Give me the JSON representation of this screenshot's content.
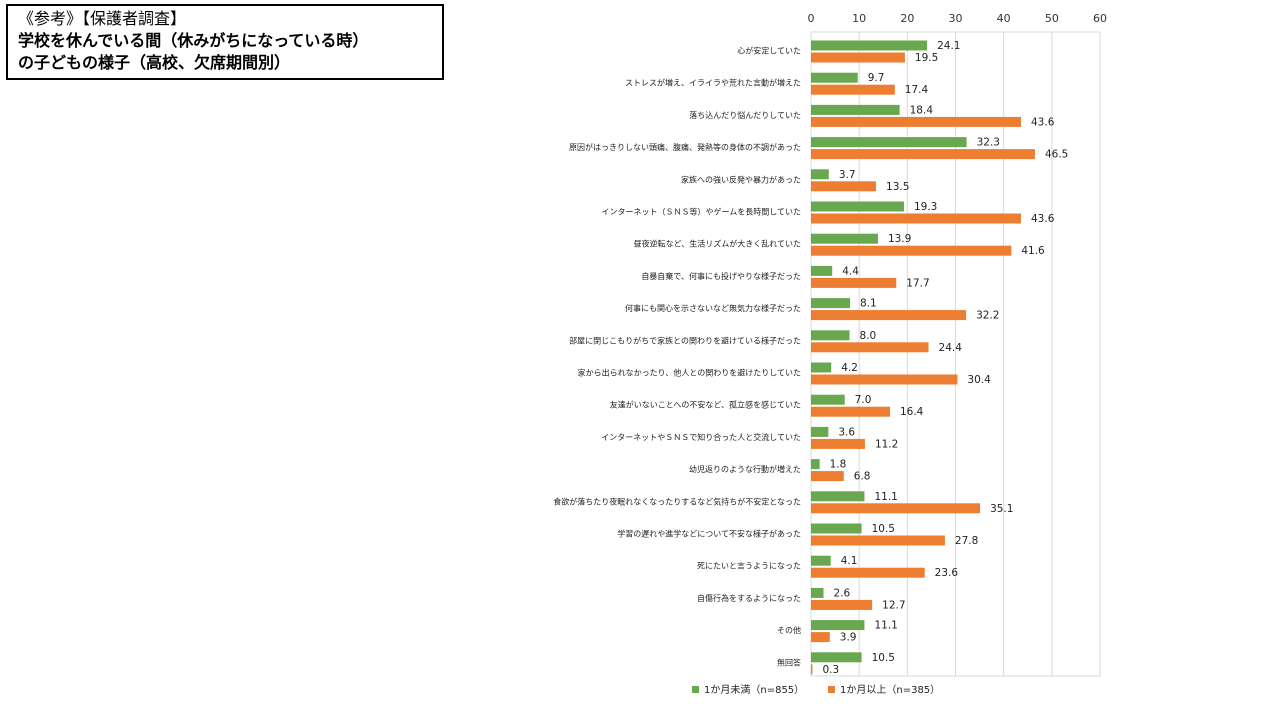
{
  "title": {
    "line1": "《参考》【保護者調査】",
    "line2": "学校を休んでいる間（休みがちになっている時）",
    "line3": "の子どもの様子（高校、欠席期間別）"
  },
  "chart_data": {
    "type": "bar",
    "orientation": "horizontal",
    "xlim": [
      0,
      60
    ],
    "xticks": [
      0,
      10,
      20,
      30,
      40,
      50,
      60
    ],
    "legend_position": "bottom",
    "categories": [
      "心が安定していた",
      "ストレスが増え、イライラや荒れた言動が増えた",
      "落ち込んだり悩んだりしていた",
      "原因がはっきりしない頭痛、腹痛、発熱等の身体の不調があった",
      "家族への強い反発や暴力があった",
      "インターネット（ＳＮＳ等）やゲームを長時間していた",
      "昼夜逆転など、生活リズムが大きく乱れていた",
      "自暴自棄で、何事にも投げやりな様子だった",
      "何事にも関心を示さないなど無気力な様子だった",
      "部屋に閉じこもりがちで家族との関わりを避けている様子だった",
      "家から出られなかったり、他人との関わりを避けたりしていた",
      "友達がいないことへの不安など、孤立感を感じていた",
      "インターネットやＳＮＳで知り合った人と交流していた",
      "幼児返りのような行動が増えた",
      "食欲が落ちたり夜眠れなくなったりするなど気持ちが不安定となった",
      "学習の遅れや進学などについて不安な様子があった",
      "死にたいと言うようになった",
      "自傷行為をするようになった",
      "その他",
      "無回答"
    ],
    "series": [
      {
        "name": "1か月未満（n=855）",
        "color": "#6aa84f",
        "values": [
          24.1,
          9.7,
          18.4,
          32.3,
          3.7,
          19.3,
          13.9,
          4.4,
          8.1,
          8.0,
          4.2,
          7.0,
          3.6,
          1.8,
          11.1,
          10.5,
          4.1,
          2.6,
          11.1,
          10.5
        ]
      },
      {
        "name": "1か月以上（n=385）",
        "color": "#ed7d31",
        "values": [
          19.5,
          17.4,
          43.6,
          46.5,
          13.5,
          43.6,
          41.6,
          17.7,
          32.2,
          24.4,
          30.4,
          16.4,
          11.2,
          6.8,
          35.1,
          27.8,
          23.6,
          12.7,
          3.9,
          0.3
        ]
      }
    ]
  }
}
